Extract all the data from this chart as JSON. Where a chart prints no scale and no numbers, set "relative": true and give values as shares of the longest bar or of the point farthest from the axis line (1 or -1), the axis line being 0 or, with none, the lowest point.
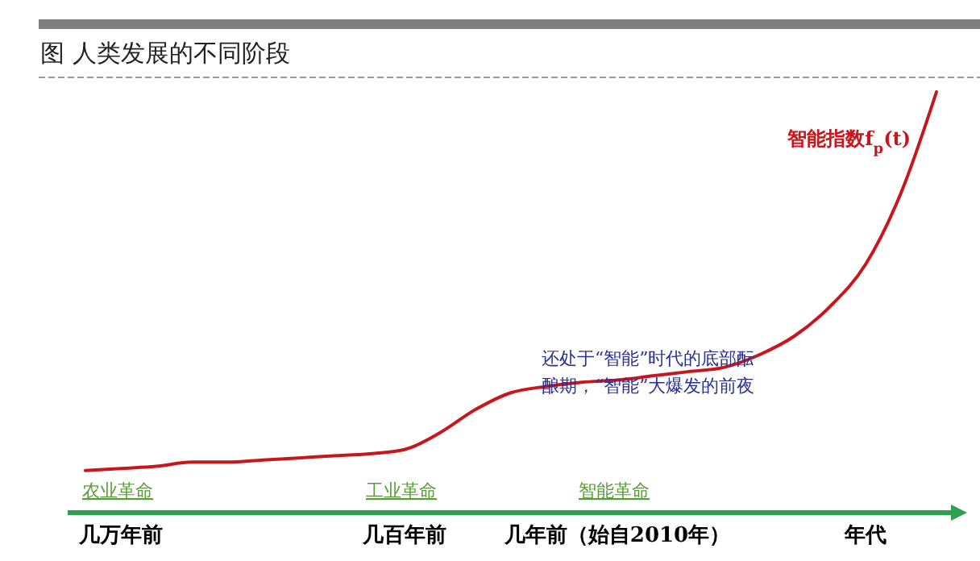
{
  "chart_data": {
    "type": "line",
    "title": "图 人类发展的不同阶段",
    "relative": true,
    "xlabel": "年代",
    "categories": [
      null,
      "几万年前",
      null,
      null,
      null,
      null,
      null,
      null,
      null,
      "几百年前",
      null,
      null,
      null,
      null,
      null,
      "几年前（始自2010年）",
      null,
      null,
      null,
      null,
      null,
      null,
      null,
      null,
      null
    ],
    "series": [
      {
        "name": "智能指数f$_{p}$(t)",
        "color": "#c8161d",
        "values": [
          0.1,
          0.105,
          0.11,
          0.12,
          0.12,
          0.125,
          0.13,
          0.135,
          0.14,
          0.15,
          0.19,
          0.245,
          0.285,
          0.3,
          0.31,
          0.315,
          0.325,
          0.335,
          0.345,
          0.375,
          0.42,
          0.49,
          0.59,
          0.76,
          1.0
        ]
      }
    ],
    "annotations": [
      "还处于“智能”时代的底部酝酿期，“智能”大爆发的前夜",
      "农业革命",
      "工业革命",
      "智能革命"
    ]
  }
}
